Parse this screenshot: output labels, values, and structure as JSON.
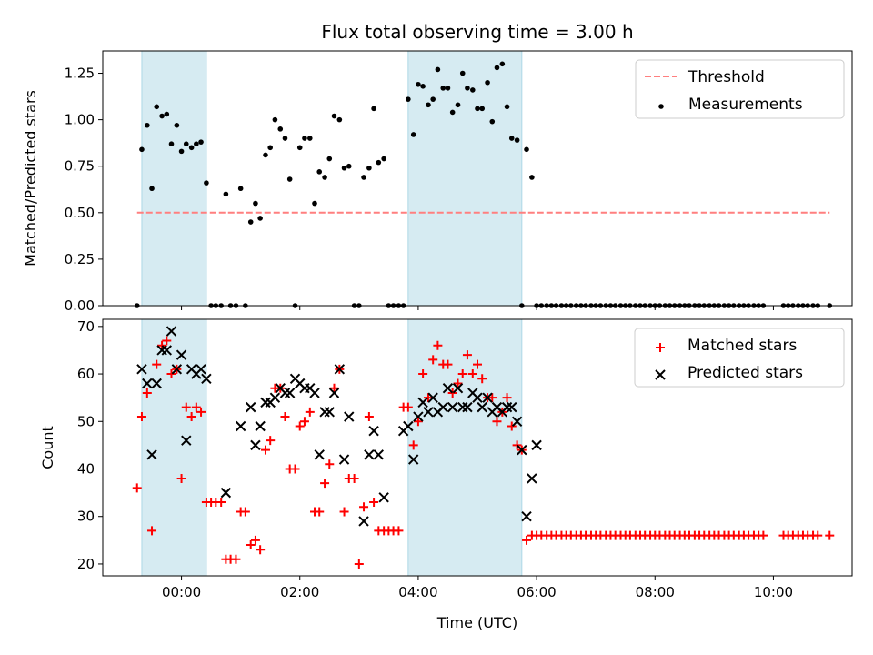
{
  "chart_data": {
    "type": "scatter",
    "title": "Flux total observing time = 3.00 h",
    "xlabel": "Time (UTC)",
    "x_ticks": [
      "00:00",
      "02:00",
      "04:00",
      "06:00",
      "08:00",
      "10:00"
    ],
    "x_tick_hours": [
      0,
      2,
      4,
      6,
      8,
      10
    ],
    "xlim_hours": [
      -1.33,
      11.33
    ],
    "shaded_intervals_hours": [
      [
        -0.67,
        0.42
      ],
      [
        3.83,
        5.75
      ]
    ],
    "shade_color": "#add8e6",
    "panels": [
      {
        "ylabel": "Matched/Predicted stars",
        "ylim": [
          0,
          1.37
        ],
        "yticks": [
          "0.00",
          "0.25",
          "0.50",
          "0.75",
          "1.00",
          "1.25"
        ],
        "yticks_values": [
          0,
          0.25,
          0.5,
          0.75,
          1.0,
          1.25
        ],
        "series": [
          {
            "name": "Threshold",
            "style": "dashed-line",
            "color": "#ff7f7f",
            "x": [
              -0.75,
              10.95
            ],
            "y": [
              0.5,
              0.5
            ]
          },
          {
            "name": "Measurements",
            "style": "dot",
            "color": "#000000",
            "x": [
              -0.75,
              -0.67,
              -0.58,
              -0.5,
              -0.42,
              -0.33,
              -0.25,
              -0.17,
              -0.08,
              0,
              0.08,
              0.17,
              0.25,
              0.33,
              0.42,
              0.5,
              0.58,
              0.67,
              0.75,
              0.83,
              0.92,
              1,
              1.08,
              1.17,
              1.25,
              1.33,
              1.42,
              1.5,
              1.58,
              1.67,
              1.75,
              1.83,
              1.92,
              2,
              2.08,
              2.17,
              2.25,
              2.33,
              2.42,
              2.5,
              2.58,
              2.67,
              2.75,
              2.83,
              2.92,
              3,
              3.08,
              3.17,
              3.25,
              3.33,
              3.42,
              3.5,
              3.58,
              3.67,
              3.75,
              3.83,
              3.92,
              4,
              4.08,
              4.17,
              4.25,
              4.33,
              4.42,
              4.5,
              4.58,
              4.67,
              4.75,
              4.83,
              4.92,
              5,
              5.08,
              5.17,
              5.25,
              5.33,
              5.42,
              5.5,
              5.58,
              5.67,
              5.75,
              5.83,
              5.92,
              6,
              6.08,
              6.17,
              6.25,
              6.33,
              6.42,
              6.5,
              6.58,
              6.67,
              6.75,
              6.83,
              6.92,
              7,
              7.08,
              7.17,
              7.25,
              7.33,
              7.42,
              7.5,
              7.58,
              7.67,
              7.75,
              7.83,
              7.92,
              8,
              8.08,
              8.17,
              8.25,
              8.33,
              8.42,
              8.5,
              8.58,
              8.67,
              8.75,
              8.83,
              8.92,
              9,
              9.08,
              9.17,
              9.25,
              9.33,
              9.42,
              9.5,
              9.58,
              9.67,
              9.75,
              9.83,
              10.17,
              10.25,
              10.33,
              10.42,
              10.5,
              10.58,
              10.67,
              10.75,
              10.95
            ],
            "y": [
              0,
              0.84,
              0.97,
              0.63,
              1.07,
              1.02,
              1.03,
              0.87,
              0.97,
              0.83,
              0.87,
              0.85,
              0.87,
              0.88,
              0.66,
              0,
              0,
              0,
              0.6,
              0,
              0,
              0.63,
              0,
              0.45,
              0.55,
              0.47,
              0.81,
              0.85,
              1.0,
              0.95,
              0.9,
              0.68,
              0,
              0.85,
              0.9,
              0.9,
              0.55,
              0.72,
              0.69,
              0.79,
              1.02,
              1.0,
              0.74,
              0.75,
              0,
              0,
              0.69,
              0.74,
              1.06,
              0.77,
              0.79,
              0,
              0,
              0,
              0,
              1.11,
              0.92,
              1.19,
              1.18,
              1.08,
              1.11,
              1.27,
              1.17,
              1.17,
              1.04,
              1.08,
              1.25,
              1.17,
              1.16,
              1.06,
              1.06,
              1.2,
              0.99,
              1.28,
              1.3,
              1.07,
              0.9,
              0.89,
              0,
              0.84,
              0.69,
              0,
              0,
              0,
              0,
              0,
              0,
              0,
              0,
              0,
              0,
              0,
              0,
              0,
              0,
              0,
              0,
              0,
              0,
              0,
              0,
              0,
              0,
              0,
              0,
              0,
              0,
              0,
              0,
              0,
              0,
              0,
              0,
              0,
              0,
              0,
              0,
              0,
              0,
              0,
              0,
              0,
              0,
              0,
              0,
              0,
              0,
              0,
              0,
              0,
              0,
              0,
              0,
              0,
              0,
              0,
              0
            ]
          }
        ],
        "legend": [
          "Threshold",
          "Measurements"
        ],
        "legend_position": "top-right"
      },
      {
        "ylabel": "Count",
        "ylim": [
          17.5,
          71.5
        ],
        "yticks": [
          "20",
          "30",
          "40",
          "50",
          "60",
          "70"
        ],
        "yticks_values": [
          20,
          30,
          40,
          50,
          60,
          70
        ],
        "series": [
          {
            "name": "Matched stars",
            "style": "plus",
            "color": "#ff0000",
            "x": [
              -0.75,
              -0.67,
              -0.58,
              -0.5,
              -0.42,
              -0.33,
              -0.25,
              -0.17,
              -0.08,
              0,
              0.08,
              0.17,
              0.25,
              0.33,
              0.42,
              0.5,
              0.58,
              0.67,
              0.75,
              0.83,
              0.92,
              1,
              1.08,
              1.17,
              1.25,
              1.33,
              1.42,
              1.5,
              1.58,
              1.67,
              1.75,
              1.83,
              1.92,
              2,
              2.08,
              2.17,
              2.25,
              2.33,
              2.42,
              2.5,
              2.58,
              2.67,
              2.75,
              2.83,
              2.92,
              3,
              3.08,
              3.17,
              3.25,
              3.33,
              3.42,
              3.5,
              3.58,
              3.67,
              3.75,
              3.83,
              3.92,
              4,
              4.08,
              4.17,
              4.25,
              4.33,
              4.42,
              4.5,
              4.58,
              4.67,
              4.75,
              4.83,
              4.92,
              5,
              5.08,
              5.17,
              5.25,
              5.33,
              5.42,
              5.5,
              5.58,
              5.67,
              5.75,
              5.83,
              5.92,
              6,
              6.08,
              6.17,
              6.25,
              6.33,
              6.42,
              6.5,
              6.58,
              6.67,
              6.75,
              6.83,
              6.92,
              7,
              7.08,
              7.17,
              7.25,
              7.33,
              7.42,
              7.5,
              7.58,
              7.67,
              7.75,
              7.83,
              7.92,
              8,
              8.08,
              8.17,
              8.25,
              8.33,
              8.42,
              8.5,
              8.58,
              8.67,
              8.75,
              8.83,
              8.92,
              9,
              9.08,
              9.17,
              9.25,
              9.33,
              9.42,
              9.5,
              9.58,
              9.67,
              9.75,
              9.83,
              10.17,
              10.25,
              10.33,
              10.42,
              10.5,
              10.58,
              10.67,
              10.75,
              10.95
            ],
            "y": [
              36,
              51,
              56,
              27,
              62,
              66,
              67,
              60,
              61,
              38,
              53,
              51,
              53,
              52,
              33,
              33,
              33,
              33,
              21,
              21,
              21,
              31,
              31,
              24,
              25,
              23,
              44,
              46,
              57,
              57,
              51,
              40,
              40,
              49,
              50,
              52,
              31,
              31,
              37,
              41,
              57,
              61,
              31,
              38,
              38,
              20,
              32,
              51,
              33,
              27,
              27,
              27,
              27,
              27,
              53,
              53,
              45,
              50,
              60,
              55,
              63,
              66,
              62,
              62,
              56,
              58,
              60,
              64,
              60,
              62,
              59,
              55,
              55,
              50,
              52,
              55,
              49,
              45,
              44,
              25,
              26,
              26,
              26,
              26,
              26,
              26,
              26,
              26,
              26,
              26,
              26,
              26,
              26,
              26,
              26,
              26,
              26,
              26,
              26,
              26,
              26,
              26,
              26,
              26,
              26,
              26,
              26,
              26,
              26,
              26,
              26,
              26,
              26,
              26,
              26,
              26,
              26,
              26,
              26,
              26,
              26,
              26,
              26,
              26,
              26,
              26,
              26,
              26,
              26,
              26,
              26,
              26,
              26,
              26,
              26,
              26,
              26
            ]
          },
          {
            "name": "Predicted stars",
            "style": "x",
            "color": "#000000",
            "x": [
              -0.67,
              -0.58,
              -0.5,
              -0.42,
              -0.33,
              -0.25,
              -0.17,
              -0.08,
              0,
              0.08,
              0.17,
              0.25,
              0.33,
              0.42,
              0.75,
              1,
              1.17,
              1.25,
              1.33,
              1.42,
              1.5,
              1.58,
              1.67,
              1.75,
              1.83,
              1.92,
              2,
              2.08,
              2.17,
              2.25,
              2.33,
              2.42,
              2.5,
              2.58,
              2.67,
              2.75,
              2.83,
              3.08,
              3.17,
              3.25,
              3.33,
              3.42,
              3.75,
              3.83,
              3.92,
              4,
              4.08,
              4.17,
              4.25,
              4.33,
              4.42,
              4.5,
              4.58,
              4.67,
              4.75,
              4.83,
              4.92,
              5,
              5.08,
              5.17,
              5.25,
              5.33,
              5.42,
              5.5,
              5.58,
              5.67,
              5.75,
              5.83,
              5.92,
              6
            ],
            "y": [
              61,
              58,
              43,
              58,
              65,
              65,
              69,
              61,
              64,
              46,
              61,
              60,
              61,
              59,
              35,
              49,
              53,
              45,
              49,
              54,
              54,
              55,
              57,
              56,
              56,
              59,
              58,
              57,
              57,
              56,
              43,
              52,
              52,
              56,
              61,
              42,
              51,
              29,
              43,
              48,
              43,
              34,
              48,
              49,
              42,
              51,
              54,
              52,
              55,
              52,
              53,
              57,
              53,
              57,
              53,
              53,
              56,
              55,
              53,
              55,
              52,
              53,
              52,
              53,
              53,
              50,
              44,
              30,
              38,
              45
            ]
          }
        ],
        "legend": [
          "Matched stars",
          "Predicted stars"
        ],
        "legend_position": "top-right"
      }
    ]
  }
}
